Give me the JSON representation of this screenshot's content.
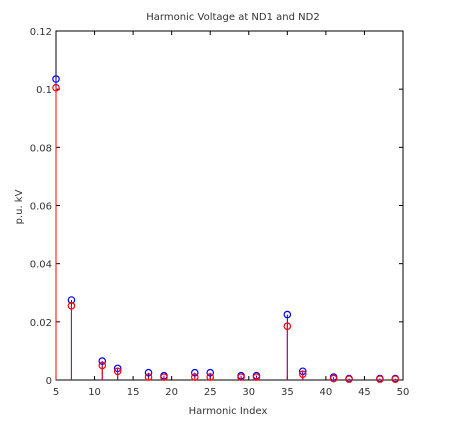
{
  "chart_data": {
    "type": "stem",
    "title": "Harmonic Voltage at ND1 and ND2",
    "xlabel": "Harmonic Index",
    "ylabel": "p.u. kV",
    "xlim": [
      5,
      50
    ],
    "ylim": [
      0,
      0.12
    ],
    "xticks": [
      5,
      10,
      15,
      20,
      25,
      30,
      35,
      40,
      45,
      50
    ],
    "yticks": [
      0,
      0.02,
      0.04,
      0.06,
      0.08,
      0.1,
      0.12
    ],
    "xtick_labels": [
      "5",
      "10",
      "15",
      "20",
      "25",
      "30",
      "35",
      "40",
      "45",
      "50"
    ],
    "ytick_labels": [
      "0",
      "0.02",
      "0.04",
      "0.06",
      "0.08",
      "0.1",
      "0.12"
    ],
    "grid": false,
    "series": [
      {
        "color": "#0000ff",
        "x": [
          5,
          7,
          11,
          13,
          17,
          19,
          23,
          25,
          29,
          31,
          35,
          37,
          41,
          43,
          47,
          49
        ],
        "y": [
          0.1035,
          0.0275,
          0.0065,
          0.004,
          0.0025,
          0.0015,
          0.0025,
          0.0025,
          0.0015,
          0.0015,
          0.0225,
          0.003,
          0.001,
          0.0005,
          0.0005,
          0.0005
        ]
      },
      {
        "color": "#ff0000",
        "x": [
          5,
          7,
          11,
          13,
          17,
          19,
          23,
          25,
          29,
          31,
          35,
          37,
          41,
          43,
          47,
          49
        ],
        "y": [
          0.1005,
          0.0255,
          0.005,
          0.003,
          0.001,
          0.001,
          0.001,
          0.001,
          0.001,
          0.001,
          0.0185,
          0.002,
          0.0005,
          0.0003,
          0.0003,
          0.0003
        ]
      }
    ]
  }
}
